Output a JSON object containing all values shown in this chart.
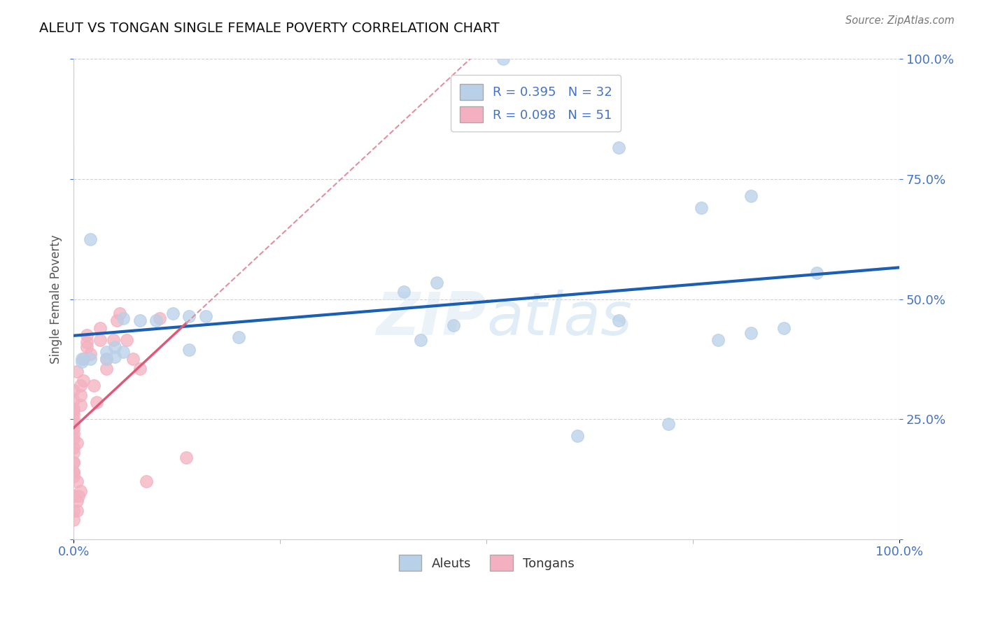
{
  "title": "ALEUT VS TONGAN SINGLE FEMALE POVERTY CORRELATION CHART",
  "source": "Source: ZipAtlas.com",
  "ylabel": "Single Female Poverty",
  "aleut_color": "#b8d0e8",
  "aleut_edge_color": "#b8d0e8",
  "tongan_color": "#f4b0c0",
  "tongan_edge_color": "#f4b0c0",
  "aleut_line_color": "#1a5fb4",
  "tongan_solid_color": "#e05878",
  "tongan_dash_color": "#e090a0",
  "background_color": "#ffffff",
  "grid_color": "#cccccc",
  "tick_color": "#4472c4",
  "title_color": "#111111",
  "ylabel_color": "#555555",
  "aleuts_x": [
    0.26,
    0.01,
    0.03,
    0.04,
    0.05,
    0.06,
    0.07,
    0.02,
    0.025,
    0.03,
    0.2,
    0.22,
    0.07,
    0.33,
    0.38,
    0.41,
    0.45,
    0.39,
    0.43,
    0.33,
    0.36,
    0.41,
    0.08,
    0.1,
    0.005,
    0.01,
    0.005,
    0.02,
    0.025,
    0.21,
    0.23,
    0.305
  ],
  "aleuts_y": [
    1.0,
    0.625,
    0.46,
    0.455,
    0.455,
    0.47,
    0.465,
    0.39,
    0.4,
    0.39,
    0.515,
    0.535,
    0.395,
    0.815,
    0.69,
    0.715,
    0.555,
    0.415,
    0.44,
    0.455,
    0.24,
    0.43,
    0.465,
    0.42,
    0.37,
    0.375,
    0.375,
    0.375,
    0.38,
    0.415,
    0.445,
    0.215
  ],
  "tongans_x": [
    0.0,
    0.0,
    0.002,
    0.003,
    0.004,
    0.002,
    0.0,
    0.0,
    0.0,
    0.0,
    0.002,
    0.0,
    0.0,
    0.0,
    0.0,
    0.0,
    0.0,
    0.004,
    0.004,
    0.0,
    0.0,
    0.0,
    0.0,
    0.0,
    0.0,
    0.0,
    0.004,
    0.006,
    0.0,
    0.002,
    0.002,
    0.006,
    0.008,
    0.008,
    0.008,
    0.01,
    0.012,
    0.014,
    0.016,
    0.016,
    0.02,
    0.02,
    0.024,
    0.026,
    0.028,
    0.032,
    0.036,
    0.04,
    0.044,
    0.052,
    0.068
  ],
  "tongans_y": [
    0.04,
    0.06,
    0.08,
    0.09,
    0.1,
    0.12,
    0.13,
    0.14,
    0.16,
    0.18,
    0.2,
    0.22,
    0.24,
    0.26,
    0.27,
    0.29,
    0.31,
    0.3,
    0.28,
    0.27,
    0.25,
    0.23,
    0.21,
    0.19,
    0.16,
    0.14,
    0.32,
    0.33,
    0.09,
    0.06,
    0.35,
    0.375,
    0.4,
    0.425,
    0.41,
    0.385,
    0.32,
    0.285,
    0.44,
    0.415,
    0.375,
    0.355,
    0.415,
    0.455,
    0.47,
    0.415,
    0.375,
    0.355,
    0.12,
    0.46,
    0.17
  ],
  "aleut_R": 0.395,
  "aleut_N": 32,
  "tongan_R": 0.098,
  "tongan_N": 51,
  "xlim": [
    0,
    0.5
  ],
  "ylim": [
    0,
    1.0
  ],
  "yticks": [
    0.0,
    0.25,
    0.5,
    0.75,
    1.0
  ],
  "yticklabels": [
    "",
    "25.0%",
    "50.0%",
    "75.0%",
    "100.0%"
  ],
  "xticks": [
    0.0,
    0.5
  ],
  "xticklabels": [
    "0.0%",
    "100.0%"
  ],
  "watermark": "ZIPatlas",
  "watermark_zip_color": "#dce8f4",
  "watermark_atlas_color": "#c8ddf0"
}
